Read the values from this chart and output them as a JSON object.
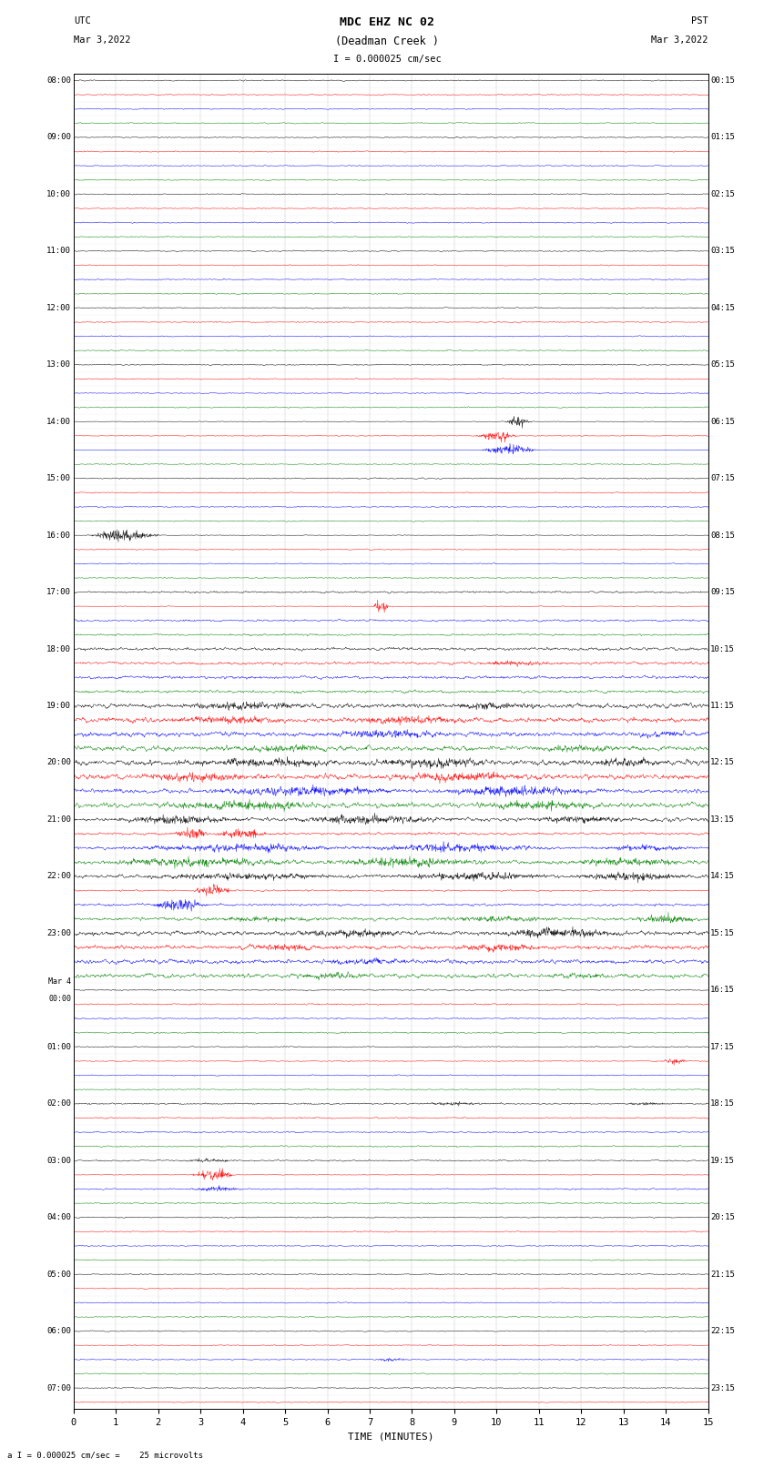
{
  "title_line1": "MDC EHZ NC 02",
  "title_line2": "(Deadman Creek )",
  "scale_label": "I = 0.000025 cm/sec",
  "bottom_label": "a I = 0.000025 cm/sec =    25 microvolts",
  "utc_label": "UTC",
  "utc_date": "Mar 3,2022",
  "pst_label": "PST",
  "pst_date": "Mar 3,2022",
  "xlabel": "TIME (MINUTES)",
  "xlim": [
    0,
    15
  ],
  "xticks": [
    0,
    1,
    2,
    3,
    4,
    5,
    6,
    7,
    8,
    9,
    10,
    11,
    12,
    13,
    14,
    15
  ],
  "background_color": "#ffffff",
  "row_colors_cycle": [
    "black",
    "red",
    "blue",
    "green"
  ],
  "fig_width": 8.5,
  "fig_height": 16.13,
  "left_labels_utc": [
    "08:00",
    "",
    "",
    "",
    "09:00",
    "",
    "",
    "",
    "10:00",
    "",
    "",
    "",
    "11:00",
    "",
    "",
    "",
    "12:00",
    "",
    "",
    "",
    "13:00",
    "",
    "",
    "",
    "14:00",
    "",
    "",
    "",
    "15:00",
    "",
    "",
    "",
    "16:00",
    "",
    "",
    "",
    "17:00",
    "",
    "",
    "",
    "18:00",
    "",
    "",
    "",
    "19:00",
    "",
    "",
    "",
    "20:00",
    "",
    "",
    "",
    "21:00",
    "",
    "",
    "",
    "22:00",
    "",
    "",
    "",
    "23:00",
    "",
    "",
    "",
    "Mar 4\n00:00",
    "",
    "",
    "",
    "01:00",
    "",
    "",
    "",
    "02:00",
    "",
    "",
    "",
    "03:00",
    "",
    "",
    "",
    "04:00",
    "",
    "",
    "",
    "05:00",
    "",
    "",
    "",
    "06:00",
    "",
    "",
    "",
    "07:00",
    ""
  ],
  "right_labels_pst": [
    "00:15",
    "",
    "",
    "",
    "01:15",
    "",
    "",
    "",
    "02:15",
    "",
    "",
    "",
    "03:15",
    "",
    "",
    "",
    "04:15",
    "",
    "",
    "",
    "05:15",
    "",
    "",
    "",
    "06:15",
    "",
    "",
    "",
    "07:15",
    "",
    "",
    "",
    "08:15",
    "",
    "",
    "",
    "09:15",
    "",
    "",
    "",
    "10:15",
    "",
    "",
    "",
    "11:15",
    "",
    "",
    "",
    "12:15",
    "",
    "",
    "",
    "13:15",
    "",
    "",
    "",
    "14:15",
    "",
    "",
    "",
    "15:15",
    "",
    "",
    "",
    "16:15",
    "",
    "",
    "",
    "17:15",
    "",
    "",
    "",
    "18:15",
    "",
    "",
    "",
    "19:15",
    "",
    "",
    "",
    "20:15",
    "",
    "",
    "",
    "21:15",
    "",
    "",
    "",
    "22:15",
    "",
    "",
    "",
    "23:15",
    ""
  ]
}
